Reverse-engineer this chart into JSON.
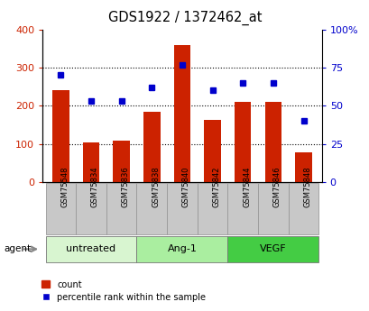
{
  "title": "GDS1922 / 1372462_at",
  "samples": [
    "GSM75548",
    "GSM75834",
    "GSM75836",
    "GSM75838",
    "GSM75840",
    "GSM75842",
    "GSM75844",
    "GSM75846",
    "GSM75848"
  ],
  "bar_values": [
    240,
    103,
    108,
    183,
    360,
    162,
    210,
    210,
    78
  ],
  "dot_values": [
    70,
    53,
    53,
    62,
    77,
    60,
    65,
    65,
    40
  ],
  "bar_color": "#cc2200",
  "dot_color": "#0000cc",
  "ylim_left": [
    0,
    400
  ],
  "ylim_right": [
    0,
    100
  ],
  "yticks_left": [
    0,
    100,
    200,
    300,
    400
  ],
  "ytick_labels_left": [
    "0",
    "100",
    "200",
    "300",
    "400"
  ],
  "yticks_right": [
    0,
    25,
    50,
    75,
    100
  ],
  "ytick_labels_right": [
    "0",
    "25",
    "50",
    "75",
    "100%"
  ],
  "groups": [
    {
      "label": "untreated",
      "indices": [
        0,
        1,
        2
      ],
      "color": "#d8f5d0"
    },
    {
      "label": "Ang-1",
      "indices": [
        3,
        4,
        5
      ],
      "color": "#aaeea0"
    },
    {
      "label": "VEGF",
      "indices": [
        6,
        7,
        8
      ],
      "color": "#44cc44"
    }
  ],
  "agent_label": "agent",
  "legend_bar": "count",
  "legend_dot": "percentile rank within the sample",
  "tick_label_area_color": "#c8c8c8",
  "bar_width": 0.55
}
